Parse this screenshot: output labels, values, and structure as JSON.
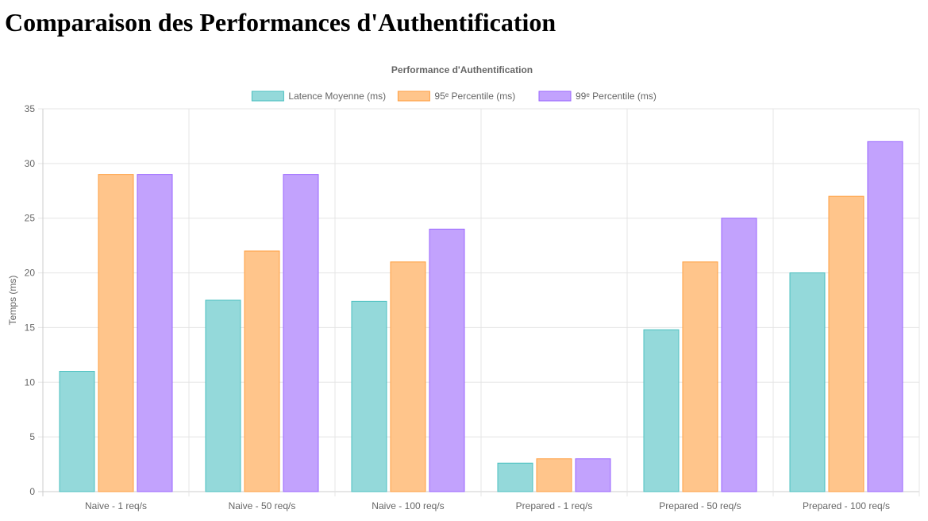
{
  "page": {
    "heading": "Comparaison des Performances d'Authentification"
  },
  "chart_data": {
    "type": "bar",
    "title": "Performance d'Authentification",
    "xlabel": "",
    "ylabel": "Temps (ms)",
    "ylim": [
      0,
      35
    ],
    "ytick_step": 5,
    "grid": true,
    "legend_position": "top",
    "categories": [
      "Naive - 1 req/s",
      "Naive - 50 req/s",
      "Naive - 100 req/s",
      "Prepared - 1 req/s",
      "Prepared - 50 req/s",
      "Prepared - 100 req/s"
    ],
    "series": [
      {
        "name": "Latence Moyenne (ms)",
        "values": [
          11,
          17.5,
          17.4,
          2.6,
          14.8,
          20
        ],
        "fill": "#94d9da",
        "stroke": "#4bc0c0"
      },
      {
        "name": "95ᵉ Percentile (ms)",
        "values": [
          29,
          22,
          21,
          3,
          21,
          27
        ],
        "fill": "#ffc58b",
        "stroke": "#ff9f40"
      },
      {
        "name": "99ᵉ Percentile (ms)",
        "values": [
          29,
          29,
          24,
          3,
          25,
          32
        ],
        "fill": "#c2a2fd",
        "stroke": "#9966ff"
      }
    ]
  }
}
